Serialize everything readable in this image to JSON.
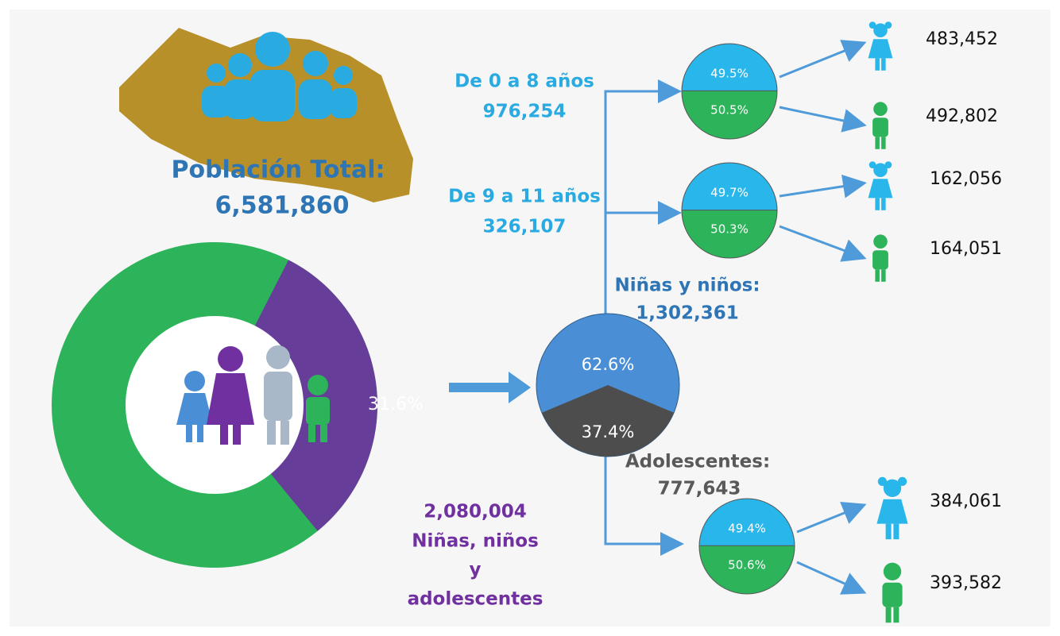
{
  "title": "Población Total:",
  "total": "6,581,860",
  "donut_label": {
    "value": 31.6,
    "label": "31.6%"
  },
  "nna": {
    "count": "2,080,004",
    "label_lines": [
      "Niñas, niños",
      "y",
      "adolescentes"
    ]
  },
  "split": {
    "children": {
      "value": 62.6,
      "label": "62.6%"
    },
    "teens": {
      "value": 37.4,
      "label": "37.4%"
    }
  },
  "children": {
    "label": "Niñas y niños:",
    "count": "1,302,361"
  },
  "teens": {
    "label": "Adolescentes:",
    "count": "777,643"
  },
  "groups": [
    {
      "label": "De 0 a 8 años",
      "count": "976,254",
      "girls": {
        "value": 49.5,
        "label": "49.5%"
      },
      "boys": {
        "value": 50.5,
        "label": "50.5%"
      },
      "girls_count": "483,452",
      "boys_count": "492,802"
    },
    {
      "label": "De 9 a 11 años",
      "count": "326,107",
      "girls": {
        "value": 49.7,
        "label": "49.7%"
      },
      "boys": {
        "value": 50.3,
        "label": "50.3%"
      },
      "girls_count": "162,056",
      "boys_count": "164,051"
    },
    {
      "girls": {
        "value": 49.4,
        "label": "49.4%"
      },
      "boys": {
        "value": 50.6,
        "label": "50.6%"
      },
      "girls_count": "384,061",
      "boys_count": "393,582"
    }
  ]
}
